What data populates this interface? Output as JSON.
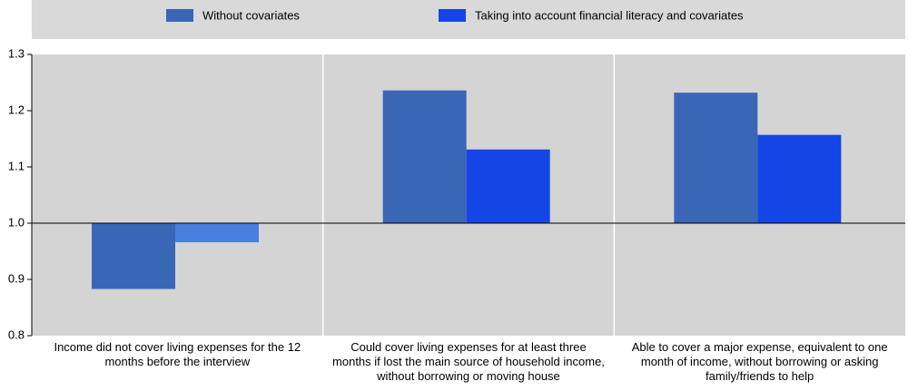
{
  "chart_data": {
    "type": "bar",
    "categories": [
      "Income did not cover living expenses for the 12 months before the interview",
      "Could cover living expenses for at least three months if lost the main source of household income, without borrowing or moving house",
      "Able to cover a major expense, equivalent to one month of income, without borrowing or asking family/friends to help"
    ],
    "series": [
      {
        "name": "Without covariates",
        "color": "#3a66b6",
        "values": [
          0.883,
          1.236,
          1.232
        ]
      },
      {
        "name": "Taking into account financial literacy and covariates",
        "color": "#1446e6",
        "colors": [
          "#4a7fe0",
          "#1446e6",
          "#1446e6"
        ],
        "values": [
          0.966,
          1.131,
          1.157
        ]
      }
    ],
    "baseline": 1,
    "ylim": [
      0.8,
      1.3
    ],
    "yticks": [
      0.8,
      0.9,
      {
        "value": 1,
        "label": "1.0"
      },
      1.1,
      1.2,
      1.3
    ],
    "grid": false
  }
}
